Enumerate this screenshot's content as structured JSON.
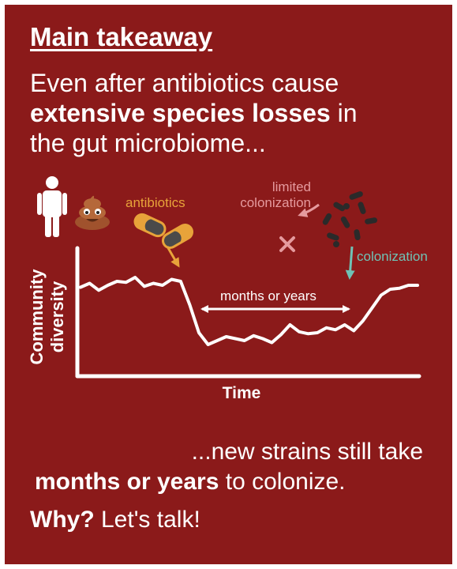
{
  "heading": "Main takeaway",
  "intro": {
    "line1": "Even after antibiotics cause",
    "line2_bold": "extensive species losses",
    "line2_rest": " in",
    "line3": "the gut microbiome..."
  },
  "diagram": {
    "antibiotics_label": "antibiotics",
    "limited_line1": "limited",
    "limited_line2": "colonization",
    "colonization_label": "colonization",
    "duration_label": "months or years",
    "ylabel_line1": "Community",
    "ylabel_line2": "diversity",
    "xlabel": "Time",
    "colors": {
      "background": "#8b1a1a",
      "antibiotics": "#e8a33a",
      "limited": "#e59a9e",
      "colonization": "#6fc2b5",
      "bacteria": "#2a2a2a"
    }
  },
  "chart_data": {
    "type": "line",
    "xlabel": "Time",
    "ylabel": "Community diversity",
    "series": [
      {
        "values": [
          0.78,
          0.82,
          0.75,
          0.8,
          0.84,
          0.83,
          0.88,
          0.79,
          0.82,
          0.8,
          0.86,
          0.84,
          0.6,
          0.32,
          0.2,
          0.24,
          0.28,
          0.26,
          0.24,
          0.29,
          0.26,
          0.22,
          0.3,
          0.4,
          0.33,
          0.31,
          0.32,
          0.37,
          0.35,
          0.4,
          0.34,
          0.44,
          0.57,
          0.7,
          0.76,
          0.77,
          0.8,
          0.8
        ]
      }
    ]
  },
  "outro": {
    "line1": "...new strains still take",
    "line2_bold": "months or years",
    "line2_rest": " to colonize.",
    "line3_bold": "Why?",
    "line3_rest": " Let's talk!"
  }
}
